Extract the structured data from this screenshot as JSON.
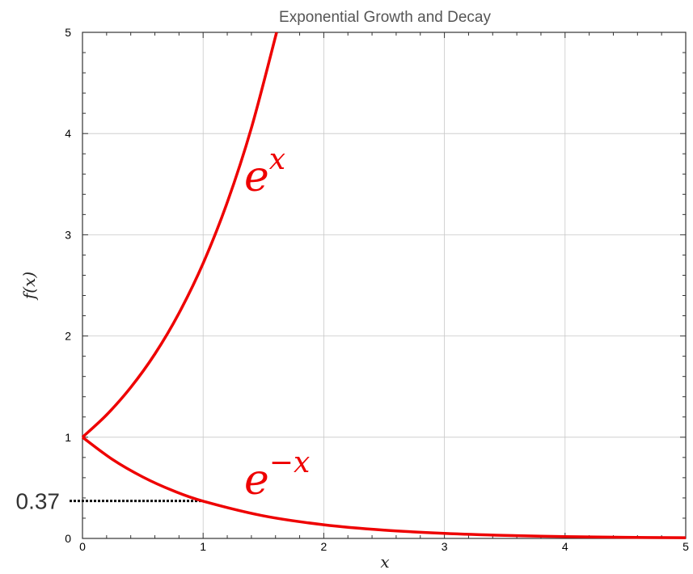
{
  "chart_data": {
    "type": "line",
    "title": "Exponential Growth and Decay",
    "xlabel": "x",
    "ylabel": "f(x)",
    "xlim": [
      0,
      5
    ],
    "ylim": [
      0,
      5
    ],
    "x_ticks": [
      "0",
      "1",
      "2",
      "3",
      "4",
      "5"
    ],
    "y_ticks": [
      "0",
      "1",
      "2",
      "3",
      "4",
      "5"
    ],
    "grid": true,
    "series": [
      {
        "label": "e^x",
        "base": "e",
        "exponent": "x",
        "color": "#ee0000",
        "x": [
          0,
          0.2,
          0.4,
          0.6,
          0.8,
          1.0,
          1.2,
          1.4,
          1.609
        ],
        "y": [
          1,
          1.221,
          1.492,
          1.822,
          2.226,
          2.718,
          3.32,
          4.055,
          5.0
        ]
      },
      {
        "label": "e^-x",
        "base": "e",
        "exponent": "−x",
        "color": "#ee0000",
        "x": [
          0,
          0.25,
          0.5,
          0.75,
          1.0,
          1.5,
          2.0,
          2.5,
          3.0,
          3.5,
          4.0,
          4.5,
          5.0
        ],
        "y": [
          1,
          0.779,
          0.607,
          0.472,
          0.368,
          0.223,
          0.135,
          0.082,
          0.05,
          0.03,
          0.018,
          0.011,
          0.007
        ]
      }
    ],
    "annotations": [
      {
        "text": "0.37",
        "x_from": 0,
        "x_to": 1,
        "y": 0.37,
        "style": "dotted"
      }
    ]
  }
}
